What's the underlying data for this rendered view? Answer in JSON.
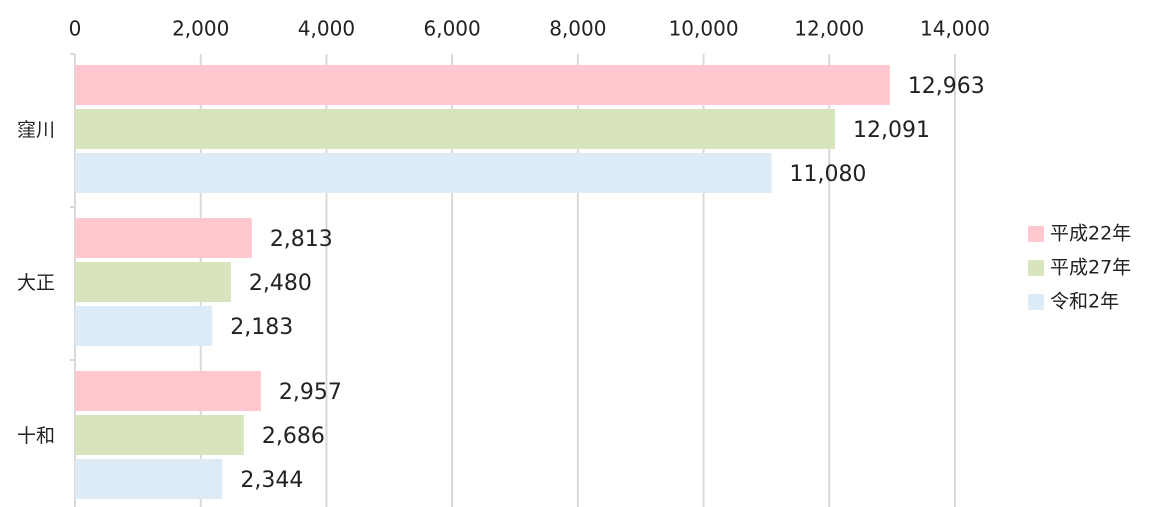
{
  "chart_data": {
    "type": "hbar",
    "categories": [
      "窪川",
      "大正",
      "十和"
    ],
    "series": [
      {
        "name": "平成22年",
        "color": "#ffc7ce",
        "values": [
          12963,
          2813,
          2957
        ],
        "value_labels": [
          "12,963",
          "2,813",
          "2,957"
        ]
      },
      {
        "name": "平成27年",
        "color": "#d8e4bc",
        "values": [
          12091,
          2480,
          2686
        ],
        "value_labels": [
          "12,091",
          "2,480",
          "2,686"
        ]
      },
      {
        "name": "令和2年",
        "color": "#ddebf7",
        "values": [
          11080,
          2183,
          2344
        ],
        "value_labels": [
          "11,080",
          "2,183",
          "2,344"
        ]
      }
    ],
    "xlim": [
      0,
      14000
    ],
    "xticks": [
      0,
      {
        "value": 2000,
        "label": "2,000"
      },
      {
        "value": 4000,
        "label": "4,000"
      },
      {
        "value": 6000,
        "label": "6,000"
      },
      {
        "value": 8000,
        "label": "8,000"
      },
      {
        "value": 10000,
        "label": "10,000"
      },
      {
        "value": 12000,
        "label": "12,000"
      },
      {
        "value": 14000,
        "label": "14,000"
      }
    ],
    "grid": true,
    "legend": "right"
  }
}
